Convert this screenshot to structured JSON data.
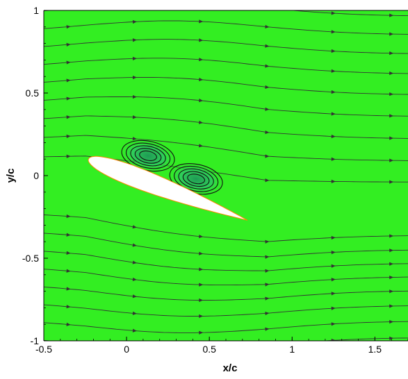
{
  "chart_data": {
    "type": "streamline",
    "title": "",
    "xlabel": "x/c",
    "ylabel": "y/c",
    "xlim": [
      -0.5,
      1.7
    ],
    "ylim": [
      -1,
      1
    ],
    "x_ticks": [
      {
        "value": -0.5,
        "label": "-0.5"
      },
      {
        "value": 0,
        "label": "0"
      },
      {
        "value": 0.5,
        "label": "0.5"
      },
      {
        "value": 1,
        "label": "1"
      },
      {
        "value": 1.5,
        "label": "1.5"
      }
    ],
    "y_ticks": [
      {
        "value": -1,
        "label": "-1"
      },
      {
        "value": -0.5,
        "label": "-0.5"
      },
      {
        "value": 0,
        "label": "0"
      },
      {
        "value": 0.5,
        "label": "0.5"
      },
      {
        "value": 1,
        "label": "1"
      }
    ],
    "grid": false,
    "background_color": "#33ee22",
    "streamline_color": "#333333",
    "airfoil": {
      "leading_edge": [
        -0.23,
        0.1
      ],
      "trailing_edge": [
        0.73,
        -0.27
      ]
    },
    "separation_vortices": [
      {
        "center": [
          0.13,
          0.12
        ]
      },
      {
        "center": [
          0.42,
          -0.02
        ]
      }
    ]
  }
}
